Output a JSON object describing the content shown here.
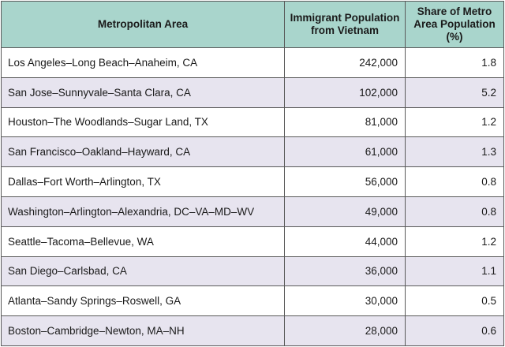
{
  "table": {
    "headers": [
      "Metropolitan Area",
      "Immigrant Population from Vietnam",
      "Share of Metro Area Population (%)"
    ],
    "rows": [
      {
        "area": "Los Angeles–Long Beach–Anaheim, CA",
        "population": "242,000",
        "share": "1.8"
      },
      {
        "area": "San Jose–Sunnyvale–Santa Clara, CA",
        "population": "102,000",
        "share": "5.2"
      },
      {
        "area": "Houston–The Woodlands–Sugar Land, TX",
        "population": "81,000",
        "share": "1.2"
      },
      {
        "area": "San Francisco–Oakland–Hayward, CA",
        "population": "61,000",
        "share": "1.3"
      },
      {
        "area": "Dallas–Fort Worth–Arlington, TX",
        "population": "56,000",
        "share": "0.8"
      },
      {
        "area": "Washington–Arlington–Alexandria, DC–VA–MD–WV",
        "population": "49,000",
        "share": "0.8"
      },
      {
        "area": "Seattle–Tacoma–Bellevue, WA",
        "population": "44,000",
        "share": "1.2"
      },
      {
        "area": "San Diego–Carlsbad, CA",
        "population": "36,000",
        "share": "1.1"
      },
      {
        "area": "Atlanta–Sandy Springs–Roswell, GA",
        "population": "30,000",
        "share": "0.5"
      },
      {
        "area": "Boston–Cambridge–Newton, MA–NH",
        "population": "28,000",
        "share": "0.6"
      }
    ]
  },
  "colors": {
    "header_bg": "#a9d5cc",
    "alt_row_bg": "#e7e4ef",
    "border": "#5a5a5a"
  }
}
